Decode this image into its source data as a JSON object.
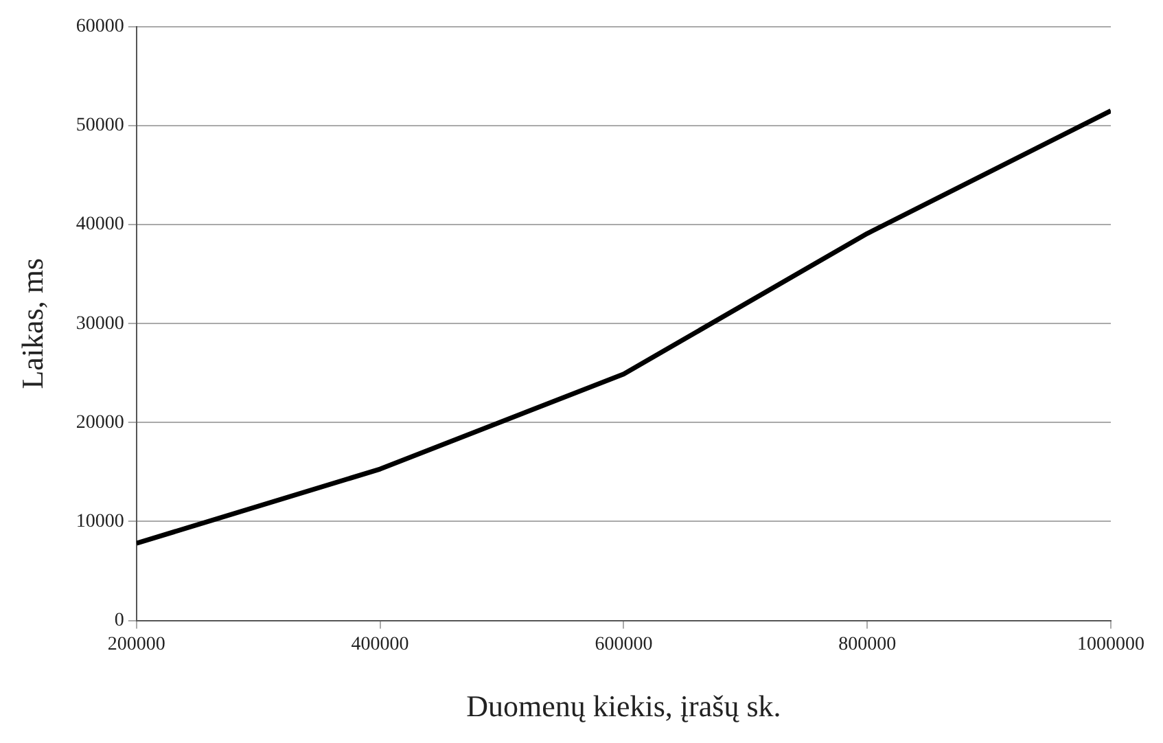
{
  "chart_data": {
    "type": "line",
    "xlabel": "Duomenų kiekis, įrašų sk.",
    "ylabel": "Laikas, ms",
    "x": [
      200000,
      400000,
      600000,
      800000,
      1000000
    ],
    "series": [
      {
        "color": "#000000",
        "values": [
          7800,
          15300,
          24900,
          39100,
          51500
        ]
      }
    ],
    "xlim": [
      200000,
      1000000
    ],
    "xticks": [
      200000,
      400000,
      600000,
      800000,
      1000000
    ],
    "ylim": [
      0,
      60000
    ],
    "yticks": [
      0,
      10000,
      20000,
      30000,
      40000,
      50000,
      60000
    ],
    "grid": "y",
    "legend": false,
    "marker": "none",
    "line_style": "solid"
  }
}
